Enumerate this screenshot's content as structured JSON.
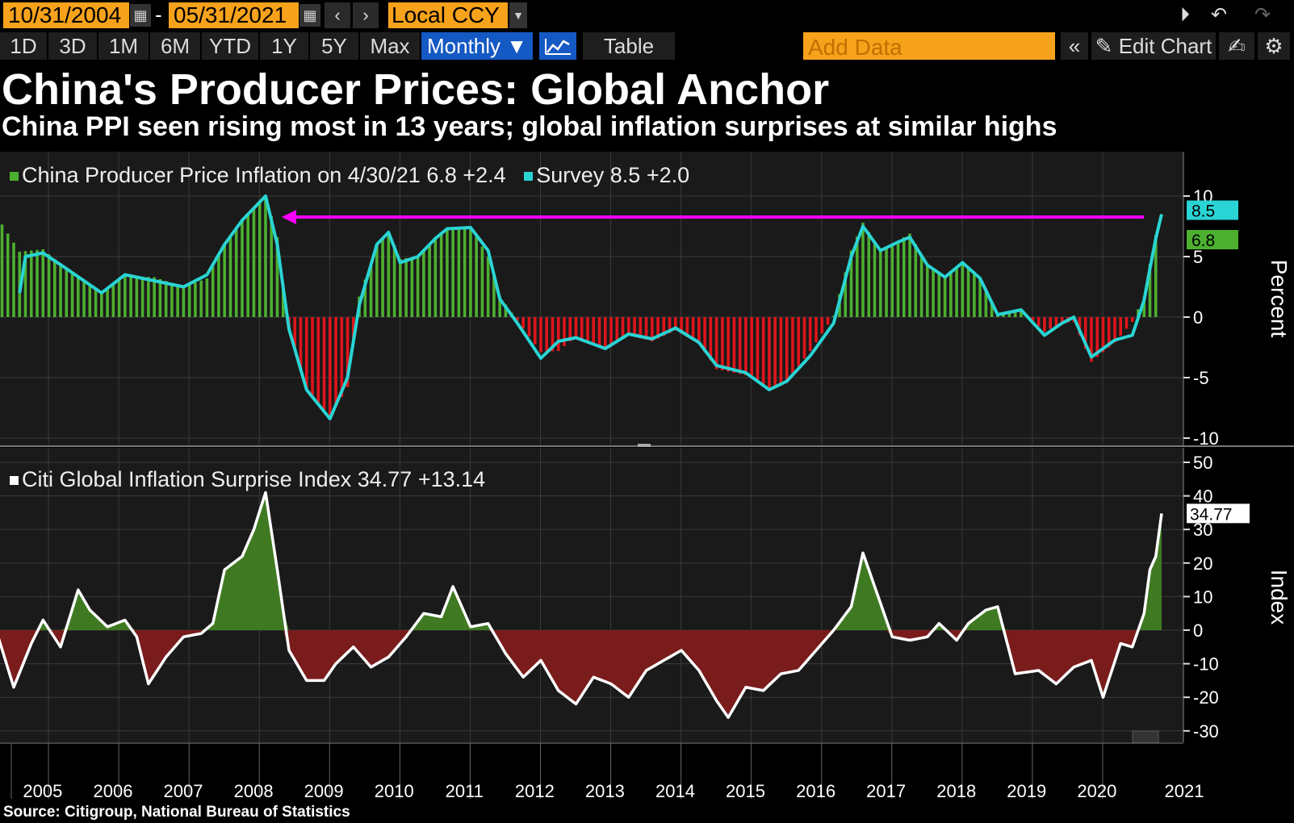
{
  "toolbar": {
    "start_date": "10/31/2004",
    "end_date": "05/31/2021",
    "date_separator": "-",
    "currency": "Local CCY",
    "ranges": [
      "1D",
      "3D",
      "1M",
      "6M",
      "YTD",
      "1Y",
      "5Y",
      "Max"
    ],
    "frequency": "Monthly ▼",
    "table_label": "Table",
    "add_data_placeholder": "Add Data",
    "collapse_label": "«",
    "edit_chart_label": "Edit Chart"
  },
  "header": {
    "title": "China's Producer Prices: Global Anchor",
    "subtitle": "China PPI seen rising most in 13 years; global inflation surprises at similar highs"
  },
  "source": "Source: Citigroup, National Bureau of Statistics",
  "colors": {
    "positive_bar": "#4caf30",
    "negative_bar": "#e0141b",
    "survey_line": "#2ad4d4",
    "arrow": "#ff00ff",
    "area_positive": "#3f7a22",
    "area_negative": "#7a1c1c"
  },
  "chart_data": [
    {
      "type": "bar",
      "title": "China Producer Price Inflation",
      "ylabel": "Percent",
      "ylim": [
        -10,
        13
      ],
      "yticks": [
        -10,
        -5,
        0,
        5,
        10
      ],
      "x_start": "2004-10",
      "frequency": "monthly",
      "legend": [
        {
          "name": "China Producer Price Inflation on 4/30/21",
          "value": "6.8",
          "change": "+2.4",
          "color": "#4caf30"
        },
        {
          "name": "Survey",
          "value": "8.5",
          "change": "+2.0",
          "color": "#2ad4d4"
        }
      ],
      "last_labels": [
        {
          "text": "8.5",
          "color": "#2ad4d4"
        },
        {
          "text": "6.8",
          "color": "#4caf30"
        }
      ],
      "annotation": {
        "type": "arrow",
        "from": "2021-05",
        "to": "2008-08",
        "y": 8.5,
        "color": "#ff00ff"
      },
      "series": [
        {
          "name": "China Producer Price Inflation",
          "style": "bar",
          "anchors": [
            [
              "2004-10",
              8.4
            ],
            [
              "2005-02",
              5.4
            ],
            [
              "2005-06",
              5.6
            ],
            [
              "2005-10",
              4.0
            ],
            [
              "2006-01",
              3.0
            ],
            [
              "2006-04",
              1.9
            ],
            [
              "2006-08",
              3.4
            ],
            [
              "2007-01",
              3.3
            ],
            [
              "2007-06",
              2.5
            ],
            [
              "2007-10",
              3.2
            ],
            [
              "2008-01",
              6.1
            ],
            [
              "2008-04",
              8.1
            ],
            [
              "2008-08",
              10.1
            ],
            [
              "2008-10",
              6.6
            ],
            [
              "2008-12",
              -1.1
            ],
            [
              "2009-03",
              -6.0
            ],
            [
              "2009-07",
              -8.2
            ],
            [
              "2009-10",
              -5.8
            ],
            [
              "2009-12",
              1.7
            ],
            [
              "2010-03",
              5.9
            ],
            [
              "2010-05",
              7.1
            ],
            [
              "2010-07",
              4.8
            ],
            [
              "2010-10",
              5.0
            ],
            [
              "2011-01",
              6.6
            ],
            [
              "2011-03",
              7.3
            ],
            [
              "2011-07",
              7.5
            ],
            [
              "2011-10",
              5.0
            ],
            [
              "2011-12",
              1.7
            ],
            [
              "2012-03",
              -0.3
            ],
            [
              "2012-07",
              -2.9
            ],
            [
              "2012-10",
              -2.8
            ],
            [
              "2013-01",
              -1.6
            ],
            [
              "2013-06",
              -2.7
            ],
            [
              "2013-10",
              -1.5
            ],
            [
              "2014-02",
              -2.0
            ],
            [
              "2014-06",
              -1.1
            ],
            [
              "2014-10",
              -2.2
            ],
            [
              "2015-01",
              -4.3
            ],
            [
              "2015-06",
              -4.8
            ],
            [
              "2015-10",
              -5.9
            ],
            [
              "2016-01",
              -5.3
            ],
            [
              "2016-05",
              -2.8
            ],
            [
              "2016-09",
              0.1
            ],
            [
              "2016-12",
              5.5
            ],
            [
              "2017-02",
              7.8
            ],
            [
              "2017-05",
              5.5
            ],
            [
              "2017-08",
              6.3
            ],
            [
              "2017-10",
              6.9
            ],
            [
              "2018-01",
              4.3
            ],
            [
              "2018-04",
              3.4
            ],
            [
              "2018-07",
              4.6
            ],
            [
              "2018-10",
              3.3
            ],
            [
              "2019-01",
              0.1
            ],
            [
              "2019-05",
              0.6
            ],
            [
              "2019-09",
              -1.2
            ],
            [
              "2019-12",
              -0.5
            ],
            [
              "2020-02",
              -0.4
            ],
            [
              "2020-05",
              -3.7
            ],
            [
              "2020-09",
              -2.1
            ],
            [
              "2020-12",
              -0.4
            ],
            [
              "2021-02",
              1.7
            ],
            [
              "2021-03",
              4.4
            ],
            [
              "2021-04",
              6.8
            ]
          ]
        },
        {
          "name": "Survey",
          "style": "line",
          "anchors": [
            [
              "2005-02",
              2.0
            ],
            [
              "2005-03",
              5.0
            ],
            [
              "2005-06",
              5.3
            ],
            [
              "2005-10",
              4.0
            ],
            [
              "2006-01",
              3.0
            ],
            [
              "2006-04",
              2.0
            ],
            [
              "2006-08",
              3.5
            ],
            [
              "2007-01",
              3.0
            ],
            [
              "2007-06",
              2.5
            ],
            [
              "2007-10",
              3.5
            ],
            [
              "2008-01",
              6.0
            ],
            [
              "2008-04",
              8.0
            ],
            [
              "2008-08",
              10.0
            ],
            [
              "2008-10",
              6.0
            ],
            [
              "2008-12",
              -1.0
            ],
            [
              "2009-03",
              -6.0
            ],
            [
              "2009-07",
              -8.4
            ],
            [
              "2009-10",
              -5.0
            ],
            [
              "2009-12",
              1.0
            ],
            [
              "2010-03",
              6.0
            ],
            [
              "2010-05",
              7.0
            ],
            [
              "2010-07",
              4.5
            ],
            [
              "2010-10",
              5.0
            ],
            [
              "2011-01",
              6.5
            ],
            [
              "2011-03",
              7.3
            ],
            [
              "2011-07",
              7.4
            ],
            [
              "2011-10",
              5.5
            ],
            [
              "2011-12",
              1.5
            ],
            [
              "2012-03",
              -0.5
            ],
            [
              "2012-07",
              -3.4
            ],
            [
              "2012-10",
              -2.0
            ],
            [
              "2013-01",
              -1.7
            ],
            [
              "2013-06",
              -2.6
            ],
            [
              "2013-10",
              -1.4
            ],
            [
              "2014-02",
              -1.8
            ],
            [
              "2014-06",
              -0.9
            ],
            [
              "2014-10",
              -2.1
            ],
            [
              "2015-01",
              -4.0
            ],
            [
              "2015-06",
              -4.6
            ],
            [
              "2015-10",
              -6.0
            ],
            [
              "2016-01",
              -5.3
            ],
            [
              "2016-05",
              -3.2
            ],
            [
              "2016-09",
              -0.5
            ],
            [
              "2016-12",
              5.0
            ],
            [
              "2017-02",
              7.5
            ],
            [
              "2017-05",
              5.5
            ],
            [
              "2017-08",
              6.2
            ],
            [
              "2017-10",
              6.6
            ],
            [
              "2018-01",
              4.3
            ],
            [
              "2018-04",
              3.3
            ],
            [
              "2018-07",
              4.5
            ],
            [
              "2018-10",
              3.2
            ],
            [
              "2019-01",
              0.2
            ],
            [
              "2019-05",
              0.6
            ],
            [
              "2019-09",
              -1.5
            ],
            [
              "2019-12",
              -0.5
            ],
            [
              "2020-02",
              0.0
            ],
            [
              "2020-05",
              -3.3
            ],
            [
              "2020-09",
              -1.9
            ],
            [
              "2020-12",
              -1.5
            ],
            [
              "2021-02",
              1.4
            ],
            [
              "2021-03",
              4.0
            ],
            [
              "2021-04",
              6.5
            ],
            [
              "2021-05",
              8.5
            ]
          ]
        }
      ]
    },
    {
      "type": "area",
      "title": "Citi Global Inflation Surprise Index",
      "ylabel": "Index",
      "ylim": [
        -32,
        53
      ],
      "yticks": [
        -30,
        -20,
        -10,
        0,
        10,
        20,
        30,
        40,
        50
      ],
      "x_start": "2004-10",
      "frequency": "monthly",
      "legend": [
        {
          "name": "Citi Global Inflation Surprise Index",
          "value": "34.77",
          "change": "+13.14",
          "color": "#ffffff"
        }
      ],
      "last_label": "34.77",
      "series": [
        {
          "name": "Citi Global Inflation Surprise Index",
          "anchors": [
            [
              "2004-10",
              0
            ],
            [
              "2005-01",
              -17
            ],
            [
              "2005-04",
              -4
            ],
            [
              "2005-06",
              3
            ],
            [
              "2005-09",
              -5
            ],
            [
              "2005-12",
              12
            ],
            [
              "2006-02",
              6
            ],
            [
              "2006-05",
              1
            ],
            [
              "2006-08",
              3
            ],
            [
              "2006-10",
              -2
            ],
            [
              "2006-12",
              -16
            ],
            [
              "2007-03",
              -8
            ],
            [
              "2007-06",
              -2
            ],
            [
              "2007-09",
              -1
            ],
            [
              "2007-11",
              2
            ],
            [
              "2008-01",
              18
            ],
            [
              "2008-04",
              22
            ],
            [
              "2008-06",
              30
            ],
            [
              "2008-08",
              41
            ],
            [
              "2008-10",
              18
            ],
            [
              "2008-12",
              -6
            ],
            [
              "2009-03",
              -15
            ],
            [
              "2009-06",
              -15
            ],
            [
              "2009-08",
              -10
            ],
            [
              "2009-11",
              -5
            ],
            [
              "2010-02",
              -11
            ],
            [
              "2010-05",
              -8
            ],
            [
              "2010-08",
              -2
            ],
            [
              "2010-11",
              5
            ],
            [
              "2011-02",
              4
            ],
            [
              "2011-04",
              13
            ],
            [
              "2011-07",
              1
            ],
            [
              "2011-10",
              2
            ],
            [
              "2012-01",
              -7
            ],
            [
              "2012-04",
              -14
            ],
            [
              "2012-07",
              -9
            ],
            [
              "2012-10",
              -18
            ],
            [
              "2013-01",
              -22
            ],
            [
              "2013-04",
              -14
            ],
            [
              "2013-07",
              -16
            ],
            [
              "2013-10",
              -20
            ],
            [
              "2014-01",
              -12
            ],
            [
              "2014-04",
              -9
            ],
            [
              "2014-07",
              -6
            ],
            [
              "2014-10",
              -12
            ],
            [
              "2015-01",
              -21
            ],
            [
              "2015-03",
              -26
            ],
            [
              "2015-06",
              -17
            ],
            [
              "2015-09",
              -18
            ],
            [
              "2015-12",
              -13
            ],
            [
              "2016-03",
              -12
            ],
            [
              "2016-06",
              -6
            ],
            [
              "2016-09",
              0
            ],
            [
              "2016-12",
              7
            ],
            [
              "2017-02",
              23
            ],
            [
              "2017-05",
              8
            ],
            [
              "2017-07",
              -2
            ],
            [
              "2017-10",
              -3
            ],
            [
              "2018-01",
              -2
            ],
            [
              "2018-03",
              2
            ],
            [
              "2018-06",
              -3
            ],
            [
              "2018-08",
              2
            ],
            [
              "2018-11",
              6
            ],
            [
              "2019-01",
              7
            ],
            [
              "2019-04",
              -13
            ],
            [
              "2019-08",
              -12
            ],
            [
              "2019-11",
              -16
            ],
            [
              "2020-02",
              -11
            ],
            [
              "2020-05",
              -9
            ],
            [
              "2020-07",
              -20
            ],
            [
              "2020-10",
              -4
            ],
            [
              "2020-12",
              -5
            ],
            [
              "2021-02",
              5
            ],
            [
              "2021-03",
              18
            ],
            [
              "2021-04",
              22
            ],
            [
              "2021-05",
              34.77
            ]
          ]
        }
      ]
    }
  ],
  "x_axis": {
    "year_labels": [
      "2005",
      "2006",
      "2007",
      "2008",
      "2009",
      "2010",
      "2011",
      "2012",
      "2013",
      "2014",
      "2015",
      "2016",
      "2017",
      "2018",
      "2019",
      "2020",
      "2021"
    ]
  }
}
